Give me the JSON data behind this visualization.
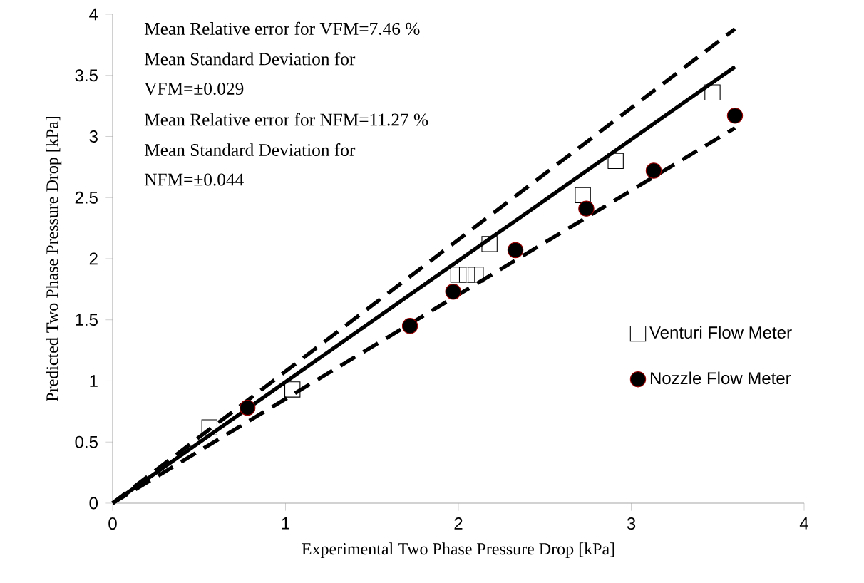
{
  "chart_data": {
    "type": "scatter",
    "xlabel": "Experimental  Two Phase Pressure Drop [kPa]",
    "ylabel": "Predicted Two Phase Pressure Drop [kPa]",
    "annotations": [
      "Mean Relative error for VFM=7.46 %",
      "Mean Standard Deviation for",
      "VFM=±0.029",
      "Mean Relative error for NFM=11.27 %",
      "Mean Standard Deviation for",
      "NFM=±0.044"
    ],
    "series": [
      {
        "type": "line",
        "color": "#000000",
        "line_style": "dashed",
        "marker": "none",
        "x": [
          0,
          3.6
        ],
        "values": [
          0,
          3.88
        ]
      },
      {
        "type": "line",
        "color": "#000000",
        "line_style": "solid",
        "marker": "none",
        "x": [
          0,
          3.6
        ],
        "values": [
          0,
          3.57
        ]
      },
      {
        "type": "line",
        "color": "#000000",
        "line_style": "dashed",
        "marker": "none",
        "x": [
          0,
          3.6
        ],
        "values": [
          0,
          3.07
        ]
      },
      {
        "name": "Venturi Flow Meter",
        "marker": "square",
        "color": "#000000",
        "x": [
          0.56,
          1.04,
          2.0,
          2.05,
          2.1,
          2.18,
          2.72,
          2.91,
          3.47
        ],
        "values": [
          0.62,
          0.93,
          1.87,
          1.87,
          1.87,
          2.12,
          2.52,
          2.8,
          3.36
        ]
      },
      {
        "name": "Nozzle Flow Meter",
        "marker": "circle",
        "color": "#000000",
        "x": [
          0.78,
          1.72,
          1.97,
          2.33,
          2.74,
          3.13,
          3.6
        ],
        "values": [
          0.78,
          1.45,
          1.73,
          2.07,
          2.41,
          2.72,
          3.17
        ]
      }
    ],
    "xlim": [
      0,
      4
    ],
    "ylim": [
      0,
      4
    ],
    "xticks": [
      0,
      1,
      2,
      3,
      4
    ],
    "yticks": [
      0,
      0.5,
      1,
      1.5,
      2,
      2.5,
      3,
      3.5,
      4
    ],
    "grid": false,
    "legend": "right"
  }
}
